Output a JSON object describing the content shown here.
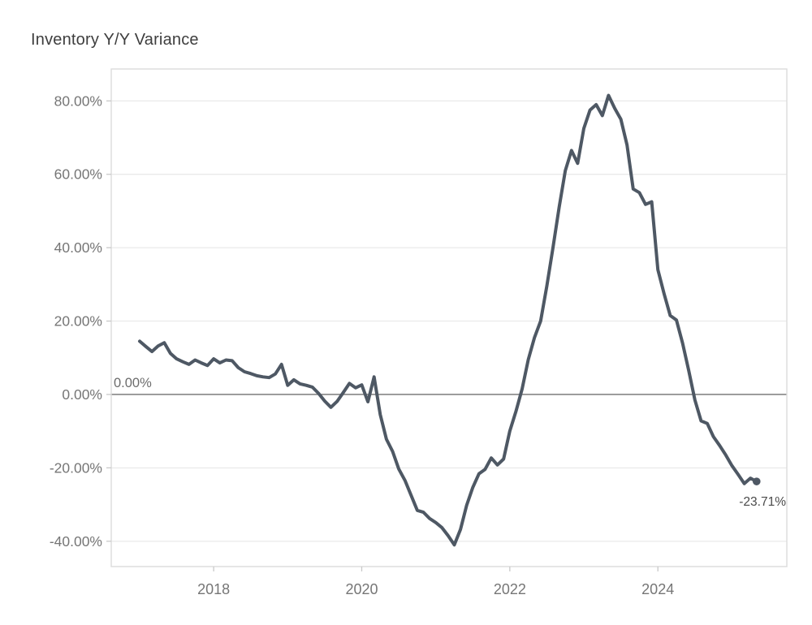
{
  "page": {
    "title": "Inventory Y/Y Variance"
  },
  "chart_data": {
    "type": "line",
    "title": "Inventory Y/Y Variance",
    "series_name": "Inventory Y/Y Variance",
    "x": [
      "2017-01",
      "2017-02",
      "2017-03",
      "2017-04",
      "2017-05",
      "2017-06",
      "2017-07",
      "2017-08",
      "2017-09",
      "2017-10",
      "2017-11",
      "2017-12",
      "2018-01",
      "2018-02",
      "2018-03",
      "2018-04",
      "2018-05",
      "2018-06",
      "2018-07",
      "2018-08",
      "2018-09",
      "2018-10",
      "2018-11",
      "2018-12",
      "2019-01",
      "2019-02",
      "2019-03",
      "2019-04",
      "2019-05",
      "2019-06",
      "2019-07",
      "2019-08",
      "2019-09",
      "2019-10",
      "2019-11",
      "2019-12",
      "2020-01",
      "2020-02",
      "2020-03",
      "2020-04",
      "2020-05",
      "2020-06",
      "2020-07",
      "2020-08",
      "2020-09",
      "2020-10",
      "2020-11",
      "2020-12",
      "2021-01",
      "2021-02",
      "2021-03",
      "2021-04",
      "2021-05",
      "2021-06",
      "2021-07",
      "2021-08",
      "2021-09",
      "2021-10",
      "2021-11",
      "2021-12",
      "2022-01",
      "2022-02",
      "2022-03",
      "2022-04",
      "2022-05",
      "2022-06",
      "2022-07",
      "2022-08",
      "2022-09",
      "2022-10",
      "2022-11",
      "2022-12",
      "2023-01",
      "2023-02",
      "2023-03",
      "2023-04",
      "2023-05",
      "2023-06",
      "2023-07",
      "2023-08",
      "2023-09",
      "2023-10",
      "2023-11",
      "2023-12",
      "2024-01",
      "2024-02",
      "2024-03",
      "2024-04",
      "2024-05",
      "2024-06",
      "2024-07",
      "2024-08",
      "2024-09",
      "2024-10",
      "2024-11",
      "2024-12",
      "2025-01",
      "2025-02",
      "2025-03",
      "2025-04",
      "2025-05"
    ],
    "values": [
      14.5,
      13.1,
      11.7,
      13.2,
      14.1,
      11.2,
      9.7,
      8.9,
      8.2,
      9.4,
      8.6,
      7.9,
      9.7,
      8.6,
      9.4,
      9.2,
      7.3,
      6.2,
      5.7,
      5.1,
      4.8,
      4.6,
      5.6,
      8.2,
      2.5,
      4.0,
      2.9,
      2.5,
      2.0,
      0.3,
      -1.8,
      -3.5,
      -1.9,
      0.5,
      3.0,
      1.8,
      2.6,
      -2.0,
      4.8,
      -5.5,
      -12.2,
      -15.5,
      -20.3,
      -23.4,
      -27.5,
      -31.6,
      -32.1,
      -33.8,
      -34.9,
      -36.3,
      -38.5,
      -41.0,
      -36.8,
      -30.2,
      -25.3,
      -21.6,
      -20.4,
      -17.3,
      -19.2,
      -17.6,
      -10.0,
      -4.6,
      1.5,
      9.5,
      15.5,
      20.0,
      29.5,
      40.0,
      51.0,
      61.0,
      66.5,
      63.0,
      72.5,
      77.5,
      79.0,
      76.0,
      81.5,
      78.0,
      75.0,
      68.0,
      56.0,
      55.0,
      51.8,
      52.5,
      34.0,
      27.5,
      21.5,
      20.3,
      14.0,
      6.5,
      -1.5,
      -7.2,
      -7.9,
      -11.5,
      -13.9,
      -16.5,
      -19.4,
      -21.8,
      -24.3,
      -22.8,
      -23.71
    ],
    "ylim": [
      -46.9,
      88.7
    ],
    "xlim_months_from_2017_01": [
      -4.6,
      104.9
    ],
    "yticks": [
      {
        "value": 80,
        "label": "80.00%"
      },
      {
        "value": 60,
        "label": "60.00%"
      },
      {
        "value": 40,
        "label": "40.00%"
      },
      {
        "value": 20,
        "label": "20.00%"
      },
      {
        "value": 0,
        "label": "0.00%"
      },
      {
        "value": -20,
        "label": "-20.00%"
      },
      {
        "value": -40,
        "label": "-40.00%"
      }
    ],
    "xticks": [
      {
        "month": "2018-01",
        "label": "2018"
      },
      {
        "month": "2020-01",
        "label": "2020"
      },
      {
        "month": "2022-01",
        "label": "2022"
      },
      {
        "month": "2024-01",
        "label": "2024"
      }
    ],
    "grid": "horizontal",
    "zero_line": true,
    "legend": "none",
    "annotations": {
      "zero_label": "0.00%",
      "end_label": "-23.71%"
    },
    "colors": {
      "line": "#4e5864",
      "marker": "#4e5864",
      "grid": "#ebebeb",
      "zero_line": "#858585",
      "border": "#dcdcdc",
      "tick_mark": "#c9c9c9",
      "axis_text": "#767676",
      "title_text": "#3e3e3e",
      "annotation_text": "#6c6c6c",
      "end_label_text": "#4a4a4a",
      "background": "#ffffff"
    }
  }
}
